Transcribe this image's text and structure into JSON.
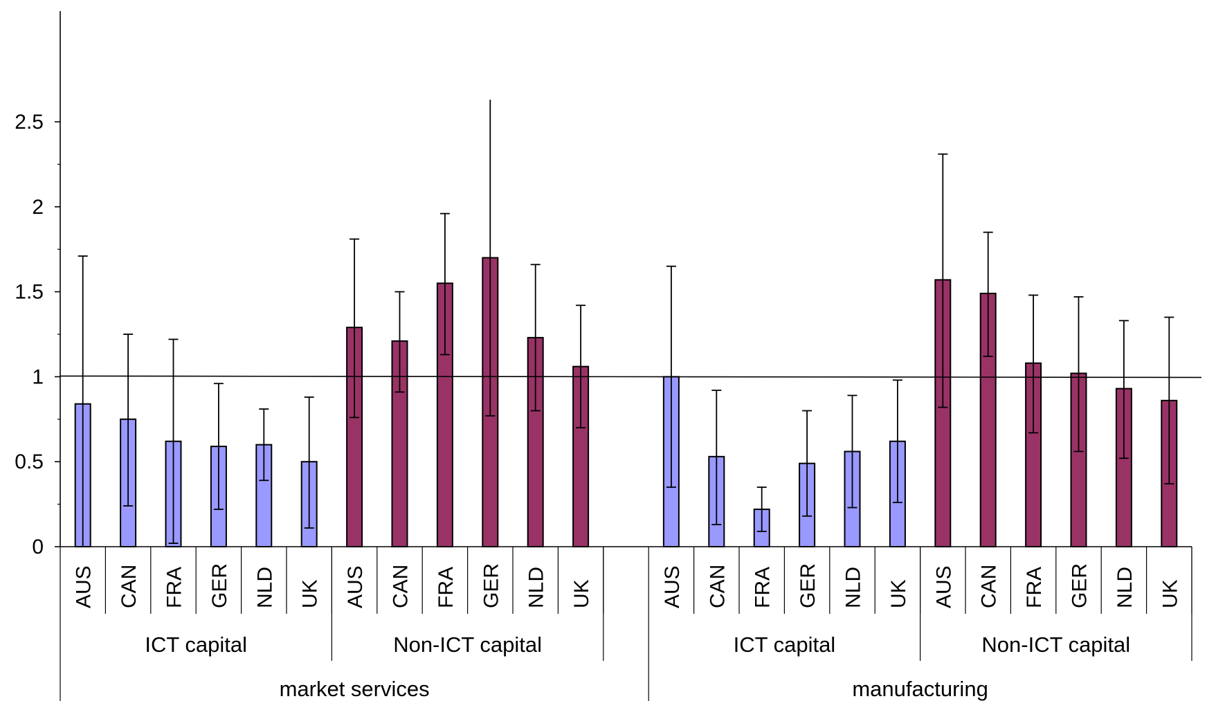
{
  "chart_data": {
    "type": "bar",
    "y_ticks": [
      "0",
      "0.5",
      "1",
      "1.5",
      "2",
      "2.5"
    ],
    "ylim": [
      0,
      2.5
    ],
    "reference_line": 1,
    "grid": false,
    "legend": "none",
    "colors": {
      "ICT capital": "#9999ff",
      "Non-ICT capital": "#993366"
    },
    "sections": [
      {
        "name": "market services",
        "groups": [
          {
            "name": "ICT capital",
            "bars": [
              {
                "label": "AUS",
                "value": 0.84,
                "err_low": 0.0,
                "err_high": 1.71
              },
              {
                "label": "CAN",
                "value": 0.75,
                "err_low": 0.24,
                "err_high": 1.25
              },
              {
                "label": "FRA",
                "value": 0.62,
                "err_low": 0.02,
                "err_high": 1.22
              },
              {
                "label": "GER",
                "value": 0.59,
                "err_low": 0.22,
                "err_high": 0.96
              },
              {
                "label": "NLD",
                "value": 0.6,
                "err_low": 0.39,
                "err_high": 0.81
              },
              {
                "label": "UK",
                "value": 0.5,
                "err_low": 0.11,
                "err_high": 0.88
              }
            ]
          },
          {
            "name": "Non-ICT capital",
            "bars": [
              {
                "label": "AUS",
                "value": 1.29,
                "err_low": 0.76,
                "err_high": 1.81
              },
              {
                "label": "CAN",
                "value": 1.21,
                "err_low": 0.91,
                "err_high": 1.5
              },
              {
                "label": "FRA",
                "value": 1.55,
                "err_low": 1.13,
                "err_high": 1.96
              },
              {
                "label": "GER",
                "value": 1.7,
                "err_low": 0.77,
                "err_high": 2.63
              },
              {
                "label": "NLD",
                "value": 1.23,
                "err_low": 0.8,
                "err_high": 1.66
              },
              {
                "label": "UK",
                "value": 1.06,
                "err_low": 0.7,
                "err_high": 1.42
              }
            ]
          }
        ]
      },
      {
        "name": "manufacturing",
        "groups": [
          {
            "name": "ICT capital",
            "bars": [
              {
                "label": "AUS",
                "value": 1.0,
                "err_low": 0.35,
                "err_high": 1.65
              },
              {
                "label": "CAN",
                "value": 0.53,
                "err_low": 0.13,
                "err_high": 0.92
              },
              {
                "label": "FRA",
                "value": 0.22,
                "err_low": 0.09,
                "err_high": 0.35
              },
              {
                "label": "GER",
                "value": 0.49,
                "err_low": 0.18,
                "err_high": 0.8
              },
              {
                "label": "NLD",
                "value": 0.56,
                "err_low": 0.23,
                "err_high": 0.89
              },
              {
                "label": "UK",
                "value": 0.62,
                "err_low": 0.26,
                "err_high": 0.98
              }
            ]
          },
          {
            "name": "Non-ICT capital",
            "bars": [
              {
                "label": "AUS",
                "value": 1.57,
                "err_low": 0.82,
                "err_high": 2.31
              },
              {
                "label": "CAN",
                "value": 1.49,
                "err_low": 1.12,
                "err_high": 1.85
              },
              {
                "label": "FRA",
                "value": 1.08,
                "err_low": 0.67,
                "err_high": 1.48
              },
              {
                "label": "GER",
                "value": 1.02,
                "err_low": 0.56,
                "err_high": 1.47
              },
              {
                "label": "NLD",
                "value": 0.93,
                "err_low": 0.52,
                "err_high": 1.33
              },
              {
                "label": "UK",
                "value": 0.86,
                "err_low": 0.37,
                "err_high": 1.35
              }
            ]
          }
        ]
      }
    ]
  }
}
